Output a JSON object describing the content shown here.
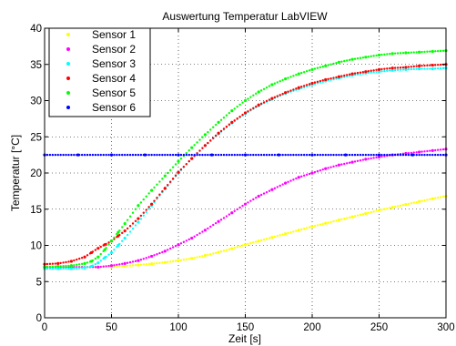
{
  "chart_data": {
    "type": "scatter",
    "title": "Auswertung Temperatur LabVIEW",
    "xlabel": "Zeit [s]",
    "ylabel": "Temperatur [°C]",
    "xlim": [
      0,
      300
    ],
    "ylim": [
      0,
      40
    ],
    "xticks": [
      0,
      50,
      100,
      150,
      200,
      250,
      300
    ],
    "yticks": [
      0,
      5,
      10,
      15,
      20,
      25,
      30,
      35,
      40
    ],
    "grid": true,
    "legend_position": "top-left",
    "marker": "dot",
    "series": [
      {
        "name": "Sensor 1",
        "color": "#ffff00",
        "x": [
          0,
          20,
          40,
          50,
          60,
          70,
          80,
          90,
          100,
          110,
          120,
          130,
          140,
          150,
          160,
          170,
          180,
          190,
          200,
          210,
          220,
          230,
          240,
          250,
          260,
          270,
          280,
          290,
          300
        ],
        "y": [
          7.0,
          7.0,
          7.0,
          7.05,
          7.15,
          7.3,
          7.45,
          7.65,
          7.9,
          8.2,
          8.6,
          9.05,
          9.55,
          10.1,
          10.6,
          11.1,
          11.6,
          12.1,
          12.6,
          13.05,
          13.5,
          13.95,
          14.4,
          14.85,
          15.25,
          15.65,
          16.05,
          16.45,
          16.8
        ]
      },
      {
        "name": "Sensor 2",
        "color": "#ff00ff",
        "x": [
          0,
          20,
          40,
          50,
          60,
          70,
          80,
          90,
          100,
          110,
          120,
          130,
          140,
          150,
          160,
          170,
          180,
          190,
          200,
          210,
          220,
          230,
          240,
          250,
          260,
          270,
          280,
          290,
          300
        ],
        "y": [
          7.0,
          7.0,
          7.0,
          7.2,
          7.5,
          7.9,
          8.5,
          9.2,
          10.1,
          11.0,
          12.1,
          13.3,
          14.5,
          15.7,
          16.8,
          17.7,
          18.6,
          19.4,
          20.0,
          20.6,
          21.1,
          21.5,
          21.9,
          22.2,
          22.5,
          22.7,
          22.9,
          23.1,
          23.3
        ]
      },
      {
        "name": "Sensor 3",
        "color": "#00ffff",
        "x": [
          0,
          10,
          20,
          30,
          35,
          40,
          45,
          50,
          55,
          60,
          70,
          80,
          90,
          100,
          110,
          120,
          130,
          140,
          150,
          160,
          170,
          180,
          190,
          200,
          210,
          220,
          230,
          240,
          250,
          260,
          270,
          280,
          290,
          300
        ],
        "y": [
          6.8,
          6.8,
          6.8,
          6.9,
          7.1,
          7.6,
          8.3,
          9.0,
          10.0,
          11.0,
          13.2,
          15.5,
          17.8,
          20.0,
          22.0,
          23.8,
          25.4,
          26.9,
          28.2,
          29.3,
          30.2,
          31.0,
          31.6,
          32.2,
          32.7,
          33.1,
          33.5,
          33.8,
          34.0,
          34.2,
          34.3,
          34.4,
          34.4,
          34.5
        ]
      },
      {
        "name": "Sensor 4",
        "color": "#ff0000",
        "x": [
          0,
          10,
          20,
          30,
          35,
          40,
          45,
          50,
          55,
          60,
          70,
          80,
          90,
          100,
          110,
          120,
          130,
          140,
          150,
          160,
          170,
          180,
          190,
          200,
          210,
          220,
          230,
          240,
          250,
          260,
          270,
          280,
          290,
          300
        ],
        "y": [
          7.4,
          7.5,
          7.8,
          8.4,
          9.0,
          9.6,
          10.1,
          10.6,
          11.3,
          12.0,
          13.7,
          15.7,
          17.9,
          20.1,
          22.0,
          23.8,
          25.5,
          27.0,
          28.3,
          29.4,
          30.3,
          31.1,
          31.8,
          32.4,
          32.9,
          33.3,
          33.7,
          34.0,
          34.3,
          34.5,
          34.6,
          34.8,
          34.9,
          35.0
        ]
      },
      {
        "name": "Sensor 5",
        "color": "#00ff00",
        "x": [
          0,
          10,
          20,
          30,
          35,
          40,
          45,
          50,
          55,
          60,
          70,
          80,
          90,
          100,
          110,
          120,
          130,
          140,
          150,
          160,
          170,
          180,
          190,
          200,
          210,
          220,
          230,
          240,
          250,
          260,
          270,
          280,
          290,
          300
        ],
        "y": [
          7.0,
          7.1,
          7.2,
          7.5,
          7.8,
          8.4,
          9.4,
          10.6,
          11.8,
          13.0,
          15.5,
          17.6,
          19.6,
          21.6,
          23.5,
          25.3,
          27.0,
          28.6,
          30.0,
          31.2,
          32.2,
          33.0,
          33.7,
          34.3,
          34.8,
          35.3,
          35.7,
          36.0,
          36.3,
          36.5,
          36.6,
          36.7,
          36.8,
          36.9
        ]
      },
      {
        "name": "Sensor 6",
        "color": "#0000ff",
        "x": [
          0,
          25,
          50,
          75,
          100,
          125,
          150,
          175,
          200,
          225,
          250,
          275,
          300
        ],
        "y": [
          22.5,
          22.5,
          22.5,
          22.5,
          22.5,
          22.5,
          22.5,
          22.5,
          22.5,
          22.5,
          22.5,
          22.5,
          22.5
        ]
      }
    ]
  }
}
